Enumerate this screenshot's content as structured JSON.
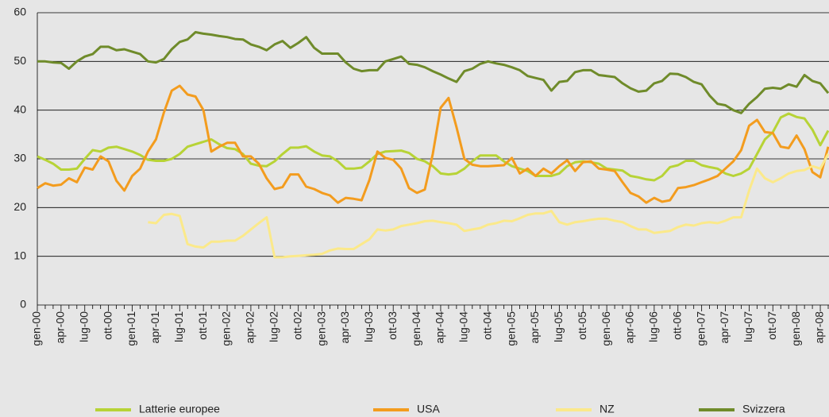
{
  "chart_data": {
    "type": "line",
    "categories": [
      "gen-00",
      null,
      null,
      "apr-00",
      null,
      null,
      "lug-00",
      null,
      null,
      "ott-00",
      null,
      null,
      "gen-01",
      null,
      null,
      "apr-01",
      null,
      null,
      "lug-01",
      null,
      null,
      "ott-01",
      null,
      null,
      "gen-02",
      null,
      null,
      "apr-02",
      null,
      null,
      "lug-02",
      null,
      null,
      "ott-02",
      null,
      null,
      "gen-03",
      null,
      null,
      "apr-03",
      null,
      null,
      "lug-03",
      null,
      null,
      "ott-03",
      null,
      null,
      "gen-04",
      null,
      null,
      "apr-04",
      null,
      null,
      "lug-04",
      null,
      null,
      "ott-04",
      null,
      null,
      "gen-05",
      null,
      null,
      "apr-05",
      null,
      null,
      "lug-05",
      null,
      null,
      "ott-05",
      null,
      null,
      "gen-06",
      null,
      null,
      "apr-06",
      null,
      null,
      "lug-06",
      null,
      null,
      "ott-06",
      null,
      null,
      "gen-07",
      null,
      null,
      "apr-07",
      null,
      null,
      "lug-07",
      null,
      null,
      "ott-07",
      null,
      null,
      "gen-08",
      null,
      null,
      "apr-08",
      null
    ],
    "series": [
      {
        "name": "Latterie europee",
        "color": "#b7d336",
        "values": [
          30.5,
          29.8,
          29,
          27.8,
          27.8,
          28,
          30,
          31.8,
          31.5,
          32.3,
          32.5,
          32,
          31.5,
          30.8,
          29.8,
          29.6,
          29.6,
          30,
          31,
          32.5,
          33,
          33.5,
          34,
          33,
          32.2,
          32,
          31,
          29,
          28.6,
          28.5,
          29.5,
          31,
          32.3,
          32.3,
          32.6,
          31.5,
          30.7,
          30.5,
          29.5,
          28,
          28,
          28.2,
          29.5,
          31,
          31.5,
          31.6,
          31.7,
          31.2,
          30,
          29.5,
          28.5,
          27,
          26.8,
          27,
          28,
          29.5,
          30.7,
          30.7,
          30.7,
          29.5,
          28.5,
          28,
          27.5,
          26.5,
          26.5,
          26.5,
          27,
          28.5,
          29.3,
          29.5,
          29.3,
          29,
          28,
          27.8,
          27.6,
          26.5,
          26.2,
          25.8,
          25.6,
          26.5,
          28.3,
          28.7,
          29.6,
          29.6,
          28.7,
          28.3,
          28,
          27,
          26.5,
          27,
          28,
          31,
          34,
          35.5,
          38.5,
          39.3,
          38.6,
          38.3,
          36,
          32.8,
          35.8
        ]
      },
      {
        "name": "USA",
        "color": "#f39c1e",
        "values": [
          24,
          25,
          24.5,
          24.7,
          26,
          25.2,
          28.2,
          27.8,
          30.5,
          29.5,
          25.5,
          23.5,
          26.5,
          28,
          31.5,
          34,
          39.5,
          44,
          45,
          43.2,
          42.8,
          40,
          31.5,
          32.5,
          33.3,
          33.3,
          30.5,
          30.5,
          29,
          26,
          23.8,
          24.2,
          26.8,
          26.8,
          24.3,
          23.8,
          23,
          22.5,
          21,
          22,
          21.8,
          21.5,
          25.7,
          31.5,
          30.2,
          29.8,
          28,
          24,
          23,
          23.7,
          31,
          40.5,
          42.5,
          36.5,
          30,
          28.8,
          28.5,
          28.5,
          28.6,
          28.7,
          30.2,
          27,
          28,
          26.5,
          28,
          27,
          28.5,
          29.7,
          27.5,
          29.3,
          29.5,
          28,
          27.8,
          27.5,
          25.2,
          23,
          22.3,
          21,
          22,
          21.2,
          21.5,
          24,
          24.2,
          24.6,
          25.2,
          25.8,
          26.5,
          28,
          29.5,
          31.8,
          36.8,
          38,
          35.5,
          35.3,
          32.5,
          32.2,
          34.8,
          32,
          27.3,
          26.2,
          32.5
        ]
      },
      {
        "name": "NZ",
        "color": "#fbe98a",
        "values": [
          null,
          null,
          null,
          null,
          null,
          null,
          null,
          null,
          null,
          null,
          null,
          null,
          null,
          null,
          17,
          16.8,
          18.5,
          18.7,
          18.3,
          12.5,
          12,
          11.8,
          13,
          13,
          13.2,
          13.2,
          14.2,
          15.5,
          16.8,
          18,
          9.8,
          9.8,
          10,
          10.1,
          10.2,
          10.3,
          10.5,
          11.2,
          11.6,
          11.5,
          11.5,
          12.5,
          13.5,
          15.5,
          15.3,
          15.5,
          16.2,
          16.5,
          16.8,
          17.2,
          17.3,
          17,
          16.8,
          16.5,
          15.2,
          15.5,
          15.8,
          16.5,
          16.8,
          17.3,
          17.2,
          17.8,
          18.5,
          18.8,
          18.8,
          19.3,
          17,
          16.5,
          17,
          17.2,
          17.5,
          17.7,
          17.7,
          17.3,
          17,
          16.2,
          15.5,
          15.5,
          14.8,
          15,
          15.2,
          16,
          16.5,
          16.3,
          16.8,
          17,
          16.8,
          17.3,
          18,
          18,
          23.5,
          28,
          26,
          25.2,
          26,
          27,
          27.5,
          27.7,
          28.5,
          28,
          31
        ]
      },
      {
        "name": "Svizzera",
        "color": "#6f8b2a",
        "values": [
          50,
          50,
          49.8,
          49.7,
          48.5,
          50,
          51,
          51.5,
          53,
          53,
          52.3,
          52.5,
          52,
          51.5,
          50,
          49.8,
          50.5,
          52.5,
          54,
          54.5,
          56,
          55.7,
          55.5,
          55.2,
          55,
          54.6,
          54.5,
          53.5,
          53,
          52.3,
          53.5,
          54.2,
          52.8,
          53.8,
          55,
          52.8,
          51.6,
          51.6,
          51.6,
          49.8,
          48.5,
          48,
          48.2,
          48.2,
          50,
          50.5,
          51,
          49.5,
          49.3,
          48.8,
          48,
          47.3,
          46.5,
          45.8,
          48,
          48.5,
          49.5,
          50,
          49.6,
          49.3,
          48.8,
          48.2,
          47,
          46.6,
          46.2,
          44,
          45.8,
          46,
          47.8,
          48.2,
          48.2,
          47.2,
          47,
          46.8,
          45.5,
          44.5,
          43.8,
          44,
          45.5,
          46,
          47.5,
          47.4,
          46.8,
          45.8,
          45.3,
          43,
          41.3,
          41,
          40,
          39.4,
          41.3,
          42.7,
          44.4,
          44.6,
          44.4,
          45.3,
          44.8,
          47.2,
          46,
          45.5,
          43.5
        ]
      }
    ],
    "ylim": [
      0,
      60
    ],
    "yticks": [
      0,
      10,
      20,
      30,
      40,
      50,
      60
    ],
    "grid": true
  }
}
